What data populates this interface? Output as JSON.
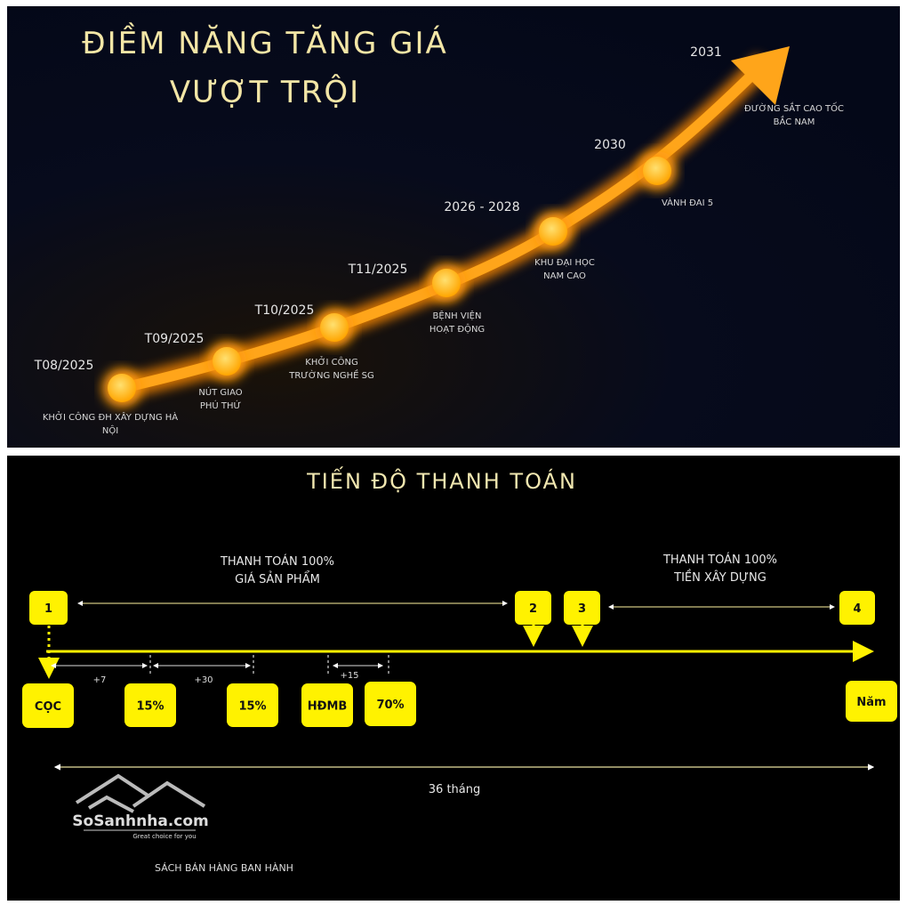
{
  "top": {
    "title_line1": "ĐIỀM NĂNG TĂNG GIÁ",
    "title_line2": "VƯỢT TRỘI",
    "milestones": [
      {
        "date": "T08/2025",
        "desc1": "KHỞI CÔNG ĐH XÂY DỰNG HÀ",
        "desc2": "NỘI"
      },
      {
        "date": "T09/2025",
        "desc1": "NÚT GIAO",
        "desc2": "PHÚ THỨ"
      },
      {
        "date": "T10/2025",
        "desc1": "KHỞI CÔNG",
        "desc2": "TRƯỜNG NGHỀ SG"
      },
      {
        "date": "T11/2025",
        "desc1": "BỆNH VIỆN",
        "desc2": "HOẠT ĐỘNG"
      },
      {
        "date": "2026 - 2028",
        "desc1": "KHU ĐẠI HỌC",
        "desc2": "NAM CAO"
      },
      {
        "date": "2030",
        "desc1": "VÀNH ĐAI 5",
        "desc2": ""
      },
      {
        "date": "2031",
        "desc1": "ĐƯỜNG SẮT CAO TỐC",
        "desc2": "BẮC NAM"
      }
    ],
    "colors": {
      "background": "#050a1a",
      "glow": "#ff9a10",
      "node": "#ffc21a"
    }
  },
  "bottom": {
    "title": "TIẾN ĐỘ THANH TOÁN",
    "span1": {
      "line1": "THANH TOÁN 100%",
      "line2": "GIÁ SẢN PHẨM"
    },
    "span2": {
      "line1": "THANH TOÁN 100%",
      "line2": "TIỀN XÂY DỰNG"
    },
    "steps": [
      "1",
      "2",
      "3",
      "4"
    ],
    "payments": [
      "CỌC",
      "15%",
      "15%",
      "HĐMB",
      "70%",
      "Năm"
    ],
    "intervals": [
      "+7",
      "+30",
      "+15"
    ],
    "duration": "36 tháng",
    "note": "SÁCH BÁN HÀNG BAN HÀNH",
    "colors": {
      "background": "#000000",
      "accent": "#fff200"
    }
  },
  "watermark": {
    "brand": "SoSanhnha.com",
    "tagline": "Great choice for you"
  }
}
